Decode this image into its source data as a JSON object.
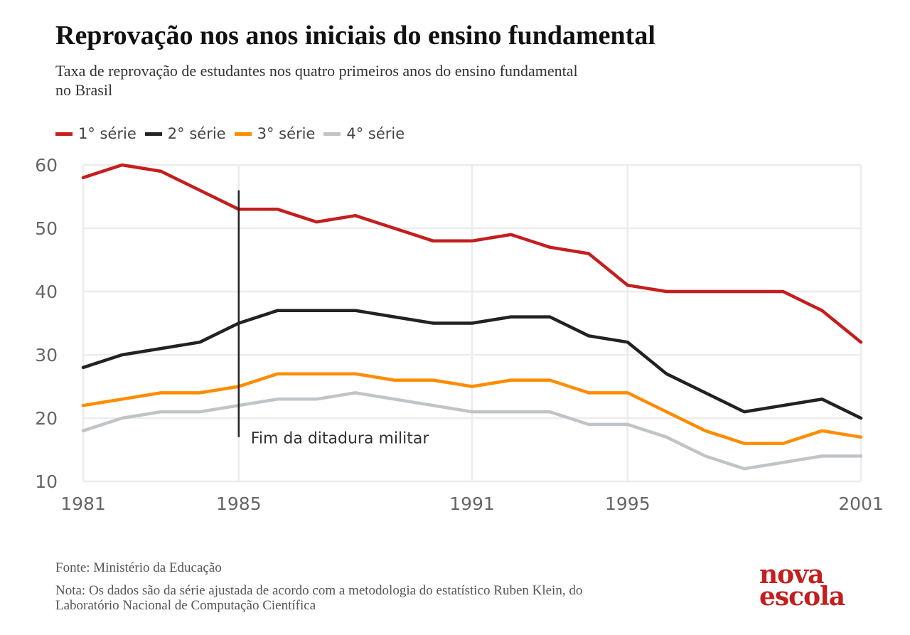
{
  "title": "Reprovação nos anos iniciais do ensino fundamental",
  "subtitle": "Taxa de reprovação de estudantes nos quatro primeiros anos do ensino fundamental no Brasil",
  "source": "Fonte: Ministério da Educação",
  "note": "Nota: Os dados são da série ajustada de acordo com a metodologia do estatístico Ruben Klein, do Laboratório Nacional de Computação Científica",
  "logo": {
    "line1": "nova",
    "line2": "escola"
  },
  "legend": [
    {
      "label": "1° série",
      "color": "#c41e1e"
    },
    {
      "label": "2° série",
      "color": "#222222"
    },
    {
      "label": "3° série",
      "color": "#ff8c00"
    },
    {
      "label": "4° série",
      "color": "#c0c4c8"
    }
  ],
  "chart_data": {
    "type": "line",
    "x": [
      1981,
      1982,
      1983,
      1984,
      1985,
      1986,
      1987,
      1988,
      1989,
      1990,
      1991,
      1992,
      1993,
      1994,
      1995,
      1996,
      1997,
      1998,
      1999,
      2000,
      2001
    ],
    "series": [
      {
        "name": "1° série",
        "color": "#c41e1e",
        "values": [
          58,
          60,
          59,
          56,
          53,
          53,
          51,
          52,
          50,
          48,
          48,
          49,
          47,
          46,
          41,
          40,
          40,
          40,
          40,
          37,
          32
        ]
      },
      {
        "name": "2° série",
        "color": "#222222",
        "values": [
          28,
          30,
          31,
          32,
          35,
          37,
          37,
          37,
          36,
          35,
          35,
          36,
          36,
          33,
          32,
          27,
          24,
          21,
          22,
          23,
          20
        ]
      },
      {
        "name": "3° série",
        "color": "#ff8c00",
        "values": [
          22,
          23,
          24,
          24,
          25,
          27,
          27,
          27,
          26,
          26,
          25,
          26,
          26,
          24,
          24,
          21,
          18,
          16,
          16,
          18,
          17
        ]
      },
      {
        "name": "4° série",
        "color": "#c0c4c8",
        "values": [
          18,
          20,
          21,
          21,
          22,
          23,
          23,
          24,
          23,
          22,
          21,
          21,
          21,
          19,
          19,
          17,
          14,
          12,
          13,
          14,
          14
        ]
      }
    ],
    "x_ticks": [
      1981,
      1985,
      1991,
      1995,
      2001
    ],
    "y_ticks": [
      10,
      20,
      30,
      40,
      50,
      60
    ],
    "xlim": [
      1981,
      2001
    ],
    "ylim": [
      10,
      60
    ],
    "grid": true,
    "legend_position": "top-left",
    "annotations": [
      {
        "type": "vline",
        "x": 1985,
        "y_from": 17,
        "y_to": 56,
        "color": "#222222",
        "label": "Fim da ditadura militar"
      }
    ]
  }
}
